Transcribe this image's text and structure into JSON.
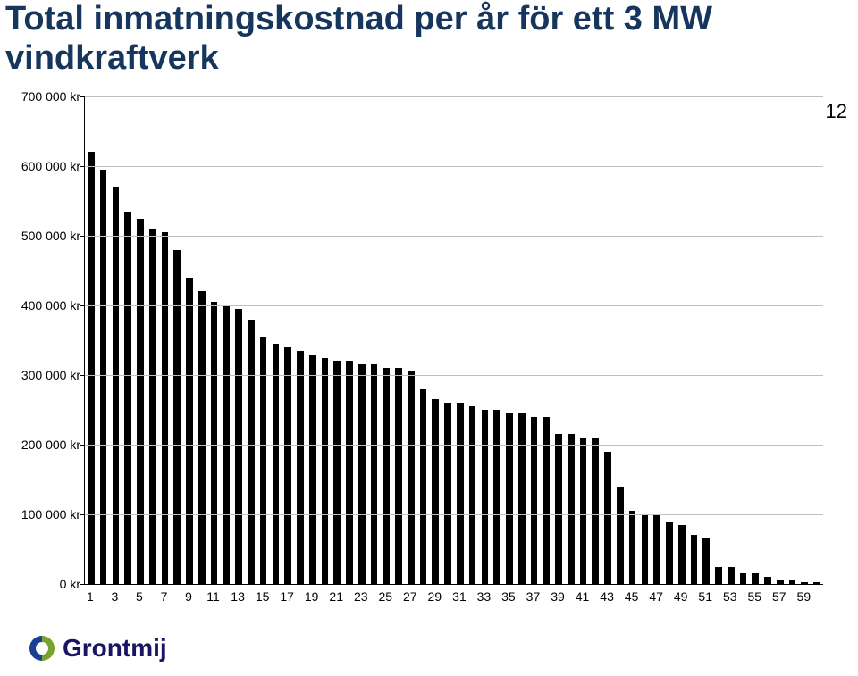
{
  "title_line1": "Total inmatningskostnad per år för ett 3 MW",
  "title_line2": "vindkraftverk",
  "title_color": "#17365d",
  "title_fontsize": 38,
  "page_number": "12",
  "page_number_fontsize": 22,
  "logo_text": "Grontmij",
  "logo_text_color": "#1b1464",
  "logo_mark_blue": "#1b3f94",
  "logo_mark_green": "#78a22f",
  "chart": {
    "type": "bar",
    "background_color": "#ffffff",
    "grid_color": "#c0c0c0",
    "axis_color": "#000000",
    "bar_color": "#000000",
    "ylim": [
      0,
      700000
    ],
    "ytick_step": 100000,
    "ytick_labels": [
      "0 kr",
      "100 000 kr",
      "200 000 kr",
      "300 000 kr",
      "400 000 kr",
      "500 000 kr",
      "600 000 kr",
      "700 000 kr"
    ],
    "yaxis_fontsize": 14,
    "xaxis_fontsize": 14,
    "x_values": [
      1,
      2,
      3,
      4,
      5,
      6,
      7,
      8,
      9,
      10,
      11,
      12,
      13,
      14,
      15,
      16,
      17,
      18,
      19,
      20,
      21,
      22,
      23,
      24,
      25,
      26,
      27,
      28,
      29,
      30,
      31,
      32,
      33,
      34,
      35,
      36,
      37,
      38,
      39,
      40,
      41,
      42,
      43,
      44,
      45,
      46,
      47,
      48,
      49,
      50,
      51,
      52,
      53,
      54,
      55,
      56,
      57,
      58,
      59,
      60
    ],
    "x_tick_labels": [
      "1",
      "3",
      "5",
      "7",
      "9",
      "11",
      "13",
      "15",
      "17",
      "19",
      "21",
      "23",
      "25",
      "27",
      "29",
      "31",
      "33",
      "35",
      "37",
      "39",
      "41",
      "43",
      "45",
      "47",
      "49",
      "51",
      "53",
      "55",
      "57",
      "59"
    ],
    "x_tick_positions": [
      1,
      3,
      5,
      7,
      9,
      11,
      13,
      15,
      17,
      19,
      21,
      23,
      25,
      27,
      29,
      31,
      33,
      35,
      37,
      39,
      41,
      43,
      45,
      47,
      49,
      51,
      53,
      55,
      57,
      59
    ],
    "values": [
      620000,
      595000,
      570000,
      535000,
      525000,
      510000,
      505000,
      480000,
      440000,
      420000,
      405000,
      400000,
      395000,
      380000,
      355000,
      345000,
      340000,
      335000,
      330000,
      325000,
      320000,
      320000,
      315000,
      315000,
      310000,
      310000,
      305000,
      280000,
      265000,
      260000,
      260000,
      255000,
      250000,
      250000,
      245000,
      245000,
      240000,
      240000,
      215000,
      215000,
      210000,
      210000,
      190000,
      140000,
      105000,
      100000,
      100000,
      90000,
      85000,
      70000,
      65000,
      25000,
      25000,
      15000,
      15000,
      10000,
      5000,
      5000,
      2000,
      2000
    ],
    "bar_width_ratio": 0.56
  }
}
